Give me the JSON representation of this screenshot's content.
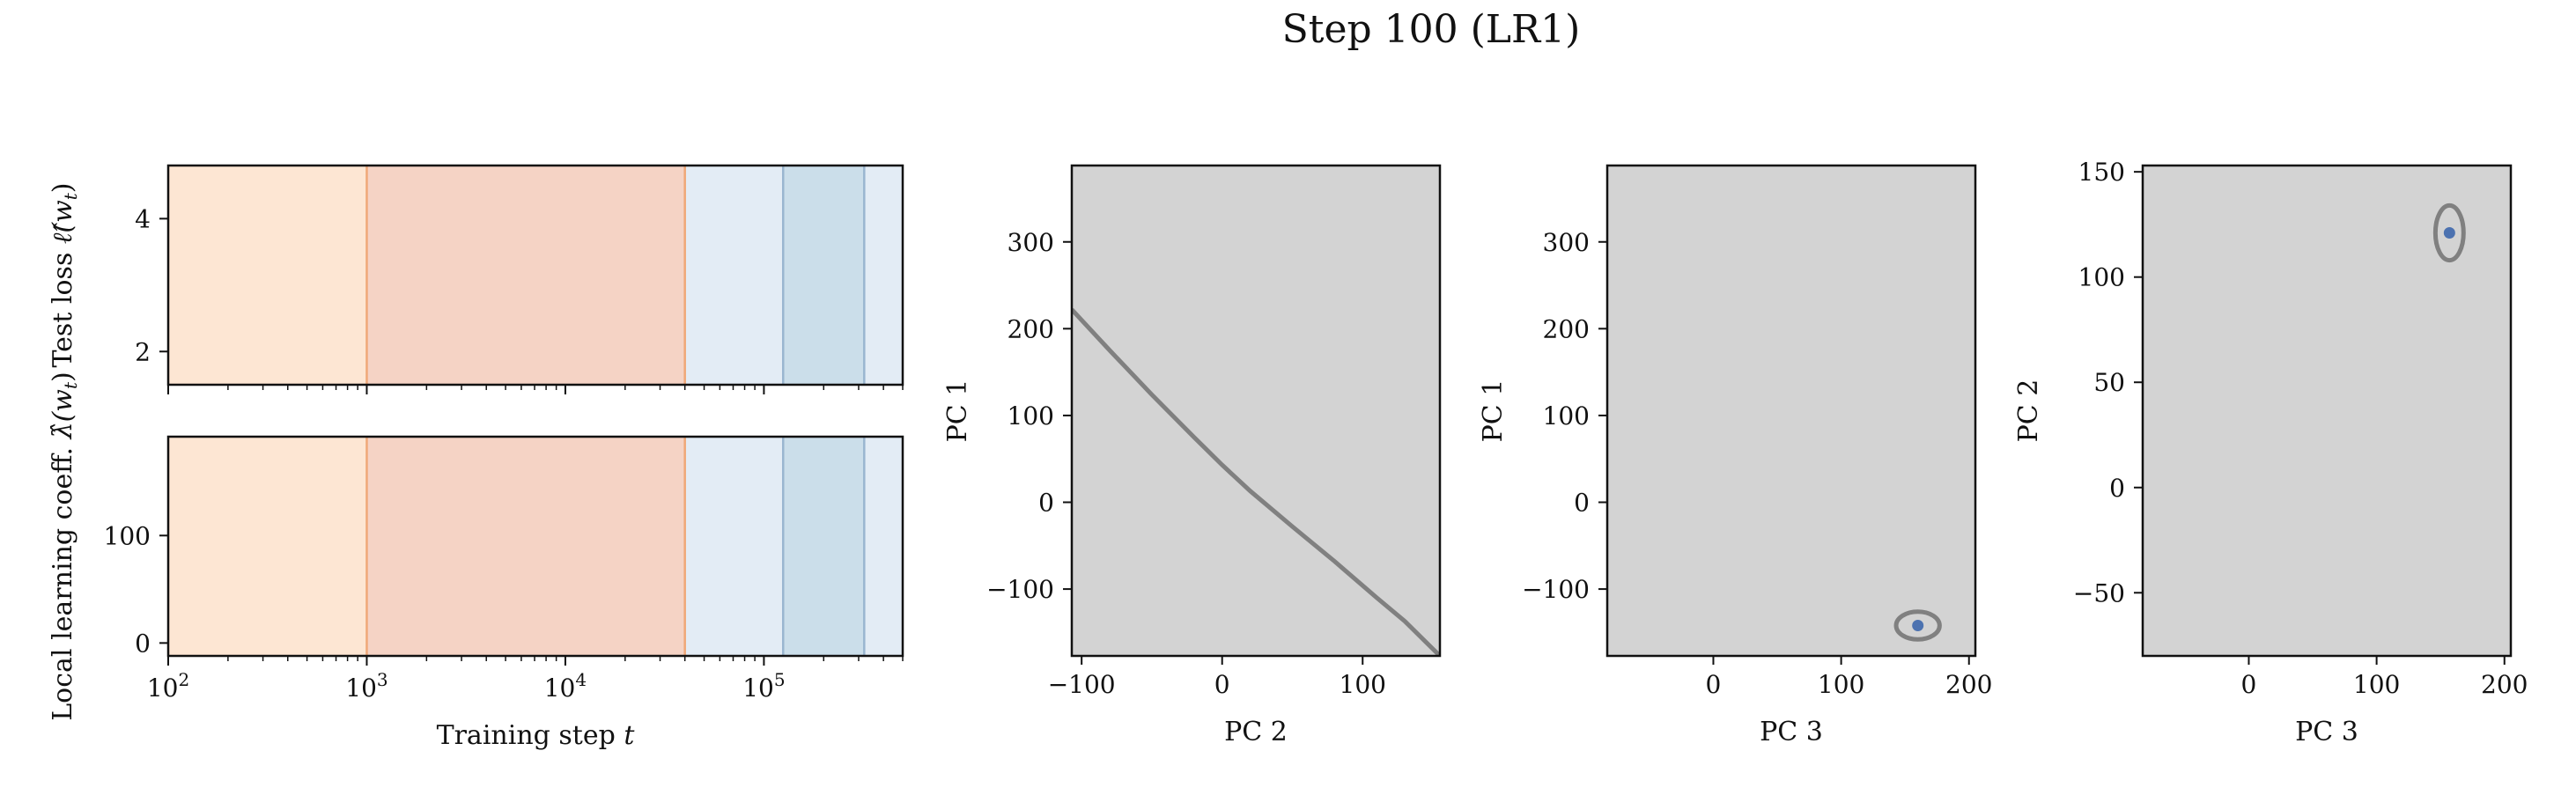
{
  "figure": {
    "title": "Step 100 (LR1)"
  },
  "colors": {
    "orange_light": "#fde6d3",
    "orange_dark": "#f5d3c5",
    "orange_line": "#f0a878",
    "blue_light": "#e3ecf5",
    "blue_dark": "#cbdeea",
    "blue_line": "#9ab6d0",
    "panel_gray": "#d3d3d3",
    "curve_gray": "#808080",
    "point_blue": "#4c72b0"
  },
  "chart_data": [
    {
      "id": "loss",
      "type": "area",
      "xscale": "log",
      "xlim": [
        100,
        500000
      ],
      "ylim": [
        1.5,
        4.8
      ],
      "ylabel": "Test loss $\\hat{\\ell}(w_t)$",
      "ylabel_text": "Test loss ",
      "ylabel_math": "ℓ̂(w",
      "ylabel_sub": "t",
      "ylabel_close": ")",
      "yticks": [
        2,
        4
      ],
      "ytick_labels": [
        "2",
        "4"
      ],
      "series": [],
      "bands": [
        {
          "x0": 100,
          "x1": 1000,
          "color": "orange_light"
        },
        {
          "x0": 1000,
          "x1": 40000,
          "color": "orange_dark"
        },
        {
          "x0": 40000,
          "x1": 125000,
          "color": "blue_light"
        },
        {
          "x0": 125000,
          "x1": 320000,
          "color": "blue_dark"
        },
        {
          "x0": 320000,
          "x1": 500000,
          "color": "blue_light"
        }
      ],
      "boundaries": [
        {
          "x": 1000,
          "color": "orange_line"
        },
        {
          "x": 40000,
          "color": "orange_line"
        },
        {
          "x": 125000,
          "color": "blue_line"
        },
        {
          "x": 320000,
          "color": "blue_line"
        }
      ]
    },
    {
      "id": "llc",
      "type": "area",
      "xscale": "log",
      "xlim": [
        100,
        500000
      ],
      "ylim": [
        -12,
        192
      ],
      "ylabel": "Local learning coeff. $\\hat{\\lambda}(w_t)$",
      "ylabel_text": "Local learning coeff. ",
      "ylabel_math": "λ̂(w",
      "ylabel_sub": "t",
      "ylabel_close": ")",
      "yticks": [
        0,
        100
      ],
      "ytick_labels": [
        "0",
        "100"
      ],
      "xlabel": "Training step $t$",
      "xlabel_text": "Training step ",
      "xlabel_math": "t",
      "xticks": [
        100,
        1000,
        10000,
        100000
      ],
      "xtick_bases": [
        "10",
        "10",
        "10",
        "10"
      ],
      "xtick_exps": [
        "2",
        "3",
        "4",
        "5"
      ],
      "series": [],
      "bands": [
        {
          "x0": 100,
          "x1": 1000,
          "color": "orange_light"
        },
        {
          "x0": 1000,
          "x1": 40000,
          "color": "orange_dark"
        },
        {
          "x0": 40000,
          "x1": 125000,
          "color": "blue_light"
        },
        {
          "x0": 125000,
          "x1": 320000,
          "color": "blue_dark"
        },
        {
          "x0": 320000,
          "x1": 500000,
          "color": "blue_light"
        }
      ],
      "boundaries": [
        {
          "x": 1000,
          "color": "orange_line"
        },
        {
          "x": 40000,
          "color": "orange_line"
        },
        {
          "x": 125000,
          "color": "blue_line"
        },
        {
          "x": 320000,
          "color": "blue_line"
        }
      ]
    },
    {
      "id": "pc1_pc2",
      "type": "line",
      "xlabel": "PC 2",
      "ylabel": "PC 1",
      "xlim": [
        -107,
        155
      ],
      "ylim": [
        -177,
        388
      ],
      "xticks": [
        -100,
        0,
        100
      ],
      "xtick_labels": [
        "−100",
        "0",
        "100"
      ],
      "yticks": [
        -100,
        0,
        100,
        200,
        300
      ],
      "ytick_labels": [
        "−100",
        "0",
        "100",
        "200",
        "300"
      ],
      "series": [
        {
          "x": [
            -107,
            -80,
            -50,
            -20,
            0,
            20,
            50,
            80,
            110,
            130,
            155
          ],
          "y": [
            222,
            175,
            124,
            75,
            43,
            13,
            -28,
            -68,
            -110,
            -137,
            -177
          ]
        }
      ],
      "points": []
    },
    {
      "id": "pc1_pc3",
      "type": "scatter",
      "xlabel": "PC 3",
      "ylabel": "PC 1",
      "xlim": [
        -83,
        205
      ],
      "ylim": [
        -177,
        388
      ],
      "xticks": [
        0,
        100,
        200
      ],
      "xtick_labels": [
        "0",
        "100",
        "200"
      ],
      "yticks": [
        -100,
        0,
        100,
        200,
        300
      ],
      "ytick_labels": [
        "−100",
        "0",
        "100",
        "200",
        "300"
      ],
      "series": [],
      "points": [
        {
          "x": 160,
          "y": -142
        }
      ],
      "ellipses": [
        {
          "cx": 160,
          "cy": -142,
          "rx": 17,
          "ry": 16
        }
      ]
    },
    {
      "id": "pc2_pc3",
      "type": "scatter",
      "xlabel": "PC 3",
      "ylabel": "PC 2",
      "xlim": [
        -83,
        205
      ],
      "ylim": [
        -80,
        153
      ],
      "xticks": [
        0,
        100,
        200
      ],
      "xtick_labels": [
        "0",
        "100",
        "200"
      ],
      "yticks": [
        -50,
        0,
        50,
        100,
        150
      ],
      "ytick_labels": [
        "−50",
        "0",
        "50",
        "100",
        "150"
      ],
      "series": [],
      "points": [
        {
          "x": 157,
          "y": 121
        }
      ],
      "ellipses": [
        {
          "cx": 157,
          "cy": 121,
          "rx": 11,
          "ry": 13
        }
      ]
    }
  ]
}
